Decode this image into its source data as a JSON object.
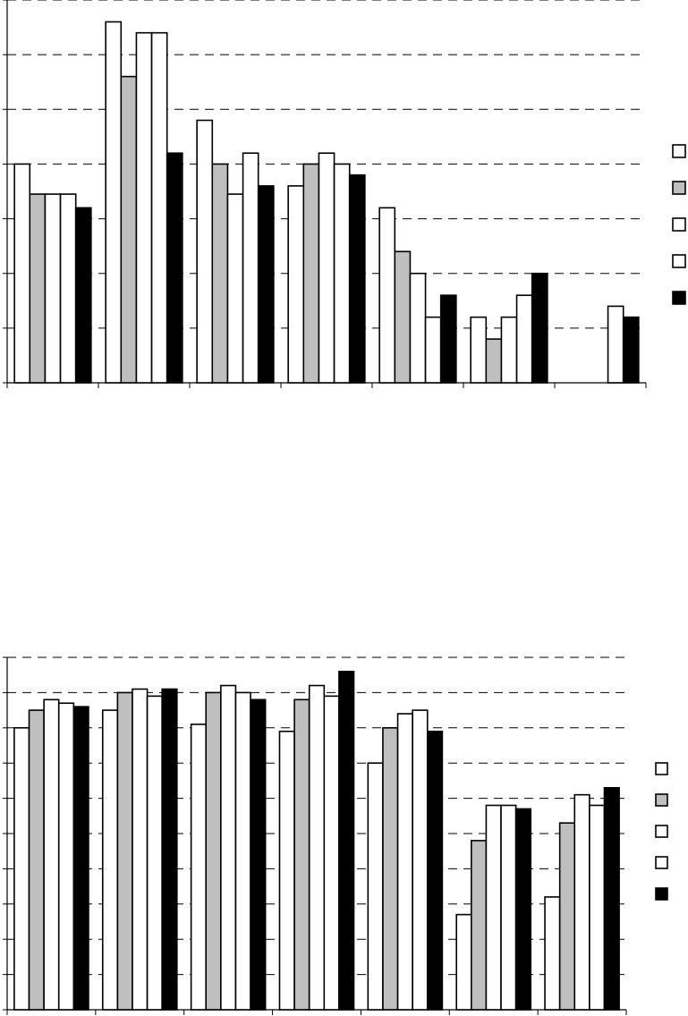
{
  "chart_data": [
    {
      "type": "bar",
      "categories": [
        "",
        "",
        "",
        "",
        "",
        "",
        ""
      ],
      "ylim": [
        0,
        7
      ],
      "grid": true,
      "legend_position": "right",
      "series": [
        {
          "color": "#ffffff",
          "values": [
            4.0,
            6.6,
            4.8,
            3.6,
            3.2,
            1.2,
            null
          ]
        },
        {
          "color": "#bfbfbf",
          "values": [
            3.45,
            5.6,
            4.0,
            4.0,
            2.4,
            0.8,
            null
          ]
        },
        {
          "color": "#ffffff",
          "values": [
            3.45,
            6.4,
            3.45,
            4.2,
            2.0,
            1.2,
            null
          ]
        },
        {
          "color": "#ffffff",
          "values": [
            3.45,
            6.4,
            4.2,
            4.0,
            1.2,
            1.6,
            1.4
          ]
        },
        {
          "color": "#000000",
          "values": [
            3.2,
            4.2,
            3.6,
            3.8,
            1.6,
            2.0,
            1.2
          ]
        }
      ]
    },
    {
      "type": "bar",
      "categories": [
        "",
        "",
        "",
        "",
        "",
        "",
        ""
      ],
      "ylim": [
        0,
        10
      ],
      "grid": true,
      "legend_position": "right",
      "series": [
        {
          "color": "#ffffff",
          "values": [
            8.0,
            8.5,
            8.1,
            7.9,
            7.0,
            2.7,
            3.2
          ]
        },
        {
          "color": "#bfbfbf",
          "values": [
            8.5,
            9.0,
            9.0,
            8.8,
            8.0,
            4.8,
            5.3
          ]
        },
        {
          "color": "#ffffff",
          "values": [
            8.8,
            9.1,
            9.2,
            9.2,
            8.4,
            5.8,
            6.1
          ]
        },
        {
          "color": "#ffffff",
          "values": [
            8.7,
            8.9,
            9.0,
            8.9,
            8.5,
            5.8,
            5.8
          ]
        },
        {
          "color": "#000000",
          "values": [
            8.6,
            9.1,
            8.8,
            9.6,
            7.9,
            5.7,
            6.3
          ]
        }
      ]
    }
  ]
}
